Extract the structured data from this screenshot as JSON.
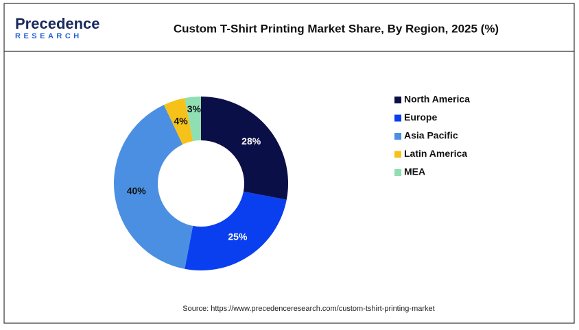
{
  "logo": {
    "name": "Precedence",
    "tagline": "RESEARCH"
  },
  "chart_data": {
    "type": "donut",
    "title": "Custom T-Shirt Printing Market Share, By Region, 2025 (%)",
    "categories": [
      "North America",
      "Europe",
      "Asia Pacific",
      "Latin America",
      "MEA"
    ],
    "values": [
      28,
      25,
      40,
      4,
      3
    ],
    "value_labels": [
      "28%",
      "25%",
      "40%",
      "4%",
      "3%"
    ],
    "colors": [
      "#0b0f47",
      "#0a3ff0",
      "#4b8fe3",
      "#f6c21a",
      "#8fdfb2"
    ],
    "legend": "right",
    "source": "Source: https://www.precedenceresearch.com/custom-tshirt-printing-market"
  }
}
